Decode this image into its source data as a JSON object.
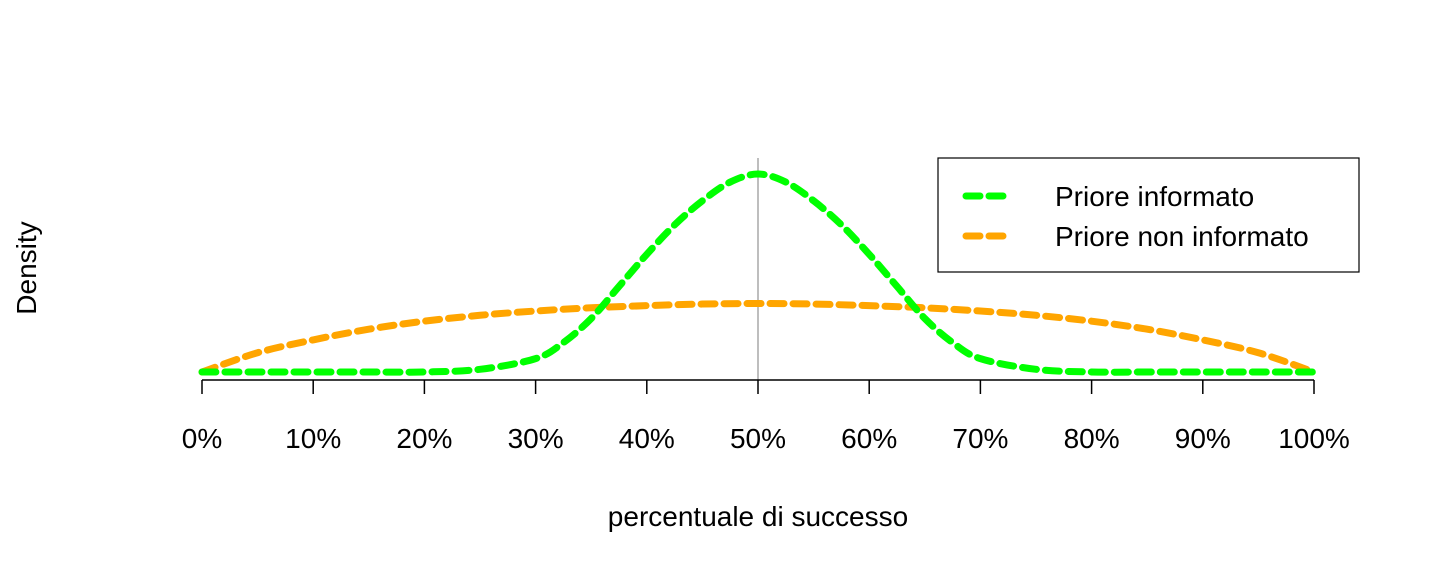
{
  "chart_data": {
    "type": "line",
    "title": "",
    "xlabel": "percentuale di successo",
    "ylabel": "Density",
    "xlim": [
      0,
      1
    ],
    "ylim": [
      0,
      4.0
    ],
    "x_ticks": [
      0,
      0.1,
      0.2,
      0.3,
      0.4,
      0.5,
      0.6,
      0.7,
      0.8,
      0.9,
      1.0
    ],
    "x_tick_labels": [
      "0%",
      "10%",
      "20%",
      "30%",
      "40%",
      "50%",
      "60%",
      "70%",
      "80%",
      "90%",
      "100%"
    ],
    "reference_line_x": 0.5,
    "grid": false,
    "legend_position": "top-right",
    "series": [
      {
        "name": "Priore informato",
        "color": "#00ff00",
        "dash": "dashed",
        "x": [
          0,
          0.05,
          0.1,
          0.15,
          0.2,
          0.25,
          0.3,
          0.325,
          0.35,
          0.375,
          0.4,
          0.425,
          0.45,
          0.475,
          0.5,
          0.525,
          0.55,
          0.575,
          0.6,
          0.625,
          0.65,
          0.675,
          0.7,
          0.75,
          0.8,
          0.85,
          0.9,
          0.95,
          1.0
        ],
        "y": [
          0,
          0.0,
          0.0,
          0.0,
          0.0,
          0.05,
          0.25,
          0.55,
          1.0,
          1.6,
          2.2,
          2.75,
          3.2,
          3.55,
          3.7,
          3.55,
          3.2,
          2.75,
          2.2,
          1.6,
          1.0,
          0.55,
          0.25,
          0.05,
          0.0,
          0.0,
          0.0,
          0.0,
          0
        ]
      },
      {
        "name": "Priore non informato",
        "color": "#ffa500",
        "dash": "dashed",
        "x": [
          0,
          0.05,
          0.1,
          0.15,
          0.2,
          0.25,
          0.3,
          0.35,
          0.4,
          0.45,
          0.5,
          0.55,
          0.6,
          0.65,
          0.7,
          0.75,
          0.8,
          0.85,
          0.9,
          0.95,
          1.0
        ],
        "y": [
          0,
          0.36,
          0.6,
          0.8,
          0.95,
          1.06,
          1.14,
          1.2,
          1.24,
          1.27,
          1.28,
          1.27,
          1.24,
          1.2,
          1.14,
          1.06,
          0.95,
          0.8,
          0.6,
          0.36,
          0
        ]
      }
    ]
  }
}
